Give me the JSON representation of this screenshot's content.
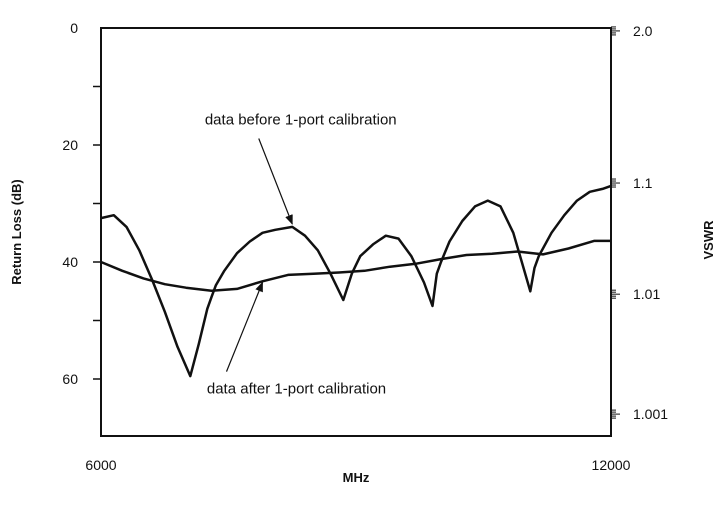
{
  "chart_data": {
    "type": "line",
    "title": "",
    "xlabel": "MHz",
    "ylabel": "Return Loss (dB)",
    "y2label": "VSWR",
    "xlim": [
      6000,
      12000
    ],
    "ylim": [
      0,
      70
    ],
    "y_inverted": true,
    "x_ticks": [
      6000,
      12000
    ],
    "x_tick_labels": [
      "6000",
      "12000"
    ],
    "y_ticks": [
      0,
      20,
      40,
      60
    ],
    "y_tick_labels": [
      "0",
      "20",
      "40",
      "60"
    ],
    "y_minor_ticks": [
      10,
      30,
      50
    ],
    "y2_ticks": [
      {
        "label": "2.0",
        "return_loss": 0.5
      },
      {
        "label": "1.1",
        "return_loss": 26.5
      },
      {
        "label": "1.01",
        "return_loss": 45.5
      },
      {
        "label": "1.001",
        "return_loss": 66.0
      }
    ],
    "grid": false,
    "legend": "none",
    "series": [
      {
        "x": [
          6000,
          6150,
          6300,
          6450,
          6600,
          6750,
          6900,
          7050,
          7150,
          7250,
          7300,
          7350,
          7450,
          7600,
          7750,
          7900,
          8050,
          8250,
          8400,
          8550,
          8700,
          8850,
          8950,
          9000,
          9050,
          9200,
          9350,
          9500,
          9650,
          9800,
          9900,
          9950,
          10000,
          10100,
          10250,
          10400,
          10550,
          10700,
          10850,
          10950,
          11050,
          11100,
          11150,
          11300,
          11450,
          11600,
          11750,
          11900,
          12000
        ],
        "y": [
          32.5,
          32.0,
          34.0,
          38.0,
          43.0,
          48.5,
          54.5,
          59.5,
          54.0,
          48.0,
          46.0,
          44.0,
          41.5,
          38.5,
          36.5,
          35.0,
          34.5,
          34.0,
          35.5,
          38.0,
          42.0,
          46.5,
          42.0,
          40.5,
          39.0,
          37.0,
          35.5,
          36.0,
          39.0,
          43.5,
          47.5,
          42.0,
          40.0,
          36.5,
          33.0,
          30.5,
          29.5,
          30.5,
          35.0,
          40.0,
          45.0,
          41.0,
          39.0,
          35.0,
          32.0,
          29.5,
          28.0,
          27.5,
          27.0
        ]
      },
      {
        "x": [
          6000,
          6250,
          6500,
          6750,
          7000,
          7300,
          7600,
          7900,
          8200,
          8500,
          8800,
          9100,
          9400,
          9700,
          10000,
          10300,
          10600,
          10900,
          11200,
          11500,
          11800,
          12000
        ],
        "y": [
          40.0,
          41.5,
          42.8,
          43.8,
          44.4,
          44.9,
          44.6,
          43.3,
          42.2,
          42.0,
          41.8,
          41.5,
          40.8,
          40.3,
          39.5,
          38.8,
          38.6,
          38.2,
          38.7,
          37.7,
          36.4,
          36.4
        ]
      }
    ],
    "annotations": [
      {
        "text": "data before 1-port calibration",
        "x": 8350,
        "y": 16.5,
        "arrow_to": {
          "x": 8250,
          "y": 33.5
        }
      },
      {
        "text": "data after 1-port calibration",
        "x": 8300,
        "y": 62.5,
        "arrow_to": {
          "x": 7900,
          "y": 43.5
        }
      }
    ]
  }
}
